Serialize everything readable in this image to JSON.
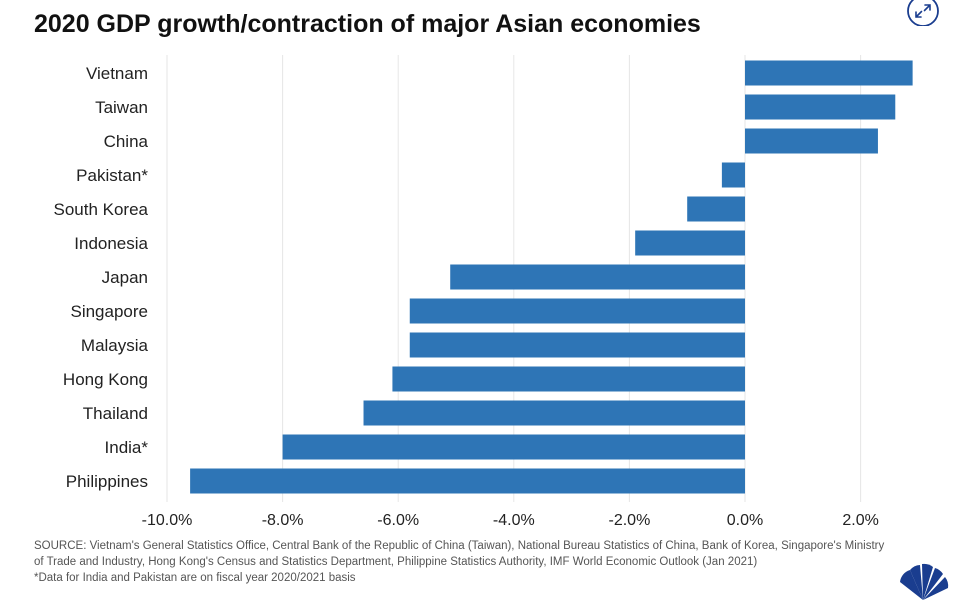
{
  "chart_data": {
    "type": "bar",
    "orientation": "horizontal",
    "title": "2020 GDP growth/contraction of major Asian economies",
    "categories": [
      "Vietnam",
      "Taiwan",
      "China",
      "Pakistan*",
      "South Korea",
      "Indonesia",
      "Japan",
      "Singapore",
      "Malaysia",
      "Hong Kong",
      "Thailand",
      "India*",
      "Philippines"
    ],
    "values": [
      2.9,
      2.6,
      2.3,
      -0.4,
      -1.0,
      -1.9,
      -5.1,
      -5.8,
      -5.8,
      -6.1,
      -6.6,
      -8.0,
      -9.6
    ],
    "xlim": [
      -10.0,
      3.5
    ],
    "xticks": [
      -10,
      -8,
      -6,
      -4,
      -2,
      0,
      2
    ],
    "xtick_labels": [
      "-10.0%",
      "-8.0%",
      "-6.0%",
      "-4.0%",
      "-2.0%",
      "0.0%",
      "2.0%"
    ],
    "xlabel": "",
    "ylabel": "",
    "grid": true,
    "bar_color": "#2E75B6"
  },
  "source_note": "SOURCE: Vietnam's General Statistics Office, Central Bank of the Republic of China (Taiwan), National Bureau Statistics of China, Bank of Korea, Singapore's Ministry of Trade and Industry, Hong Kong's Census and Statistics Department, Philippine Statistics Authority, IMF World Economic Outlook (Jan 2021)",
  "footnote": "*Data for India and Pakistan are on fiscal year 2020/2021 basis",
  "icons": {
    "expand": "expand-icon",
    "logo": "cnbc-peacock-logo"
  }
}
